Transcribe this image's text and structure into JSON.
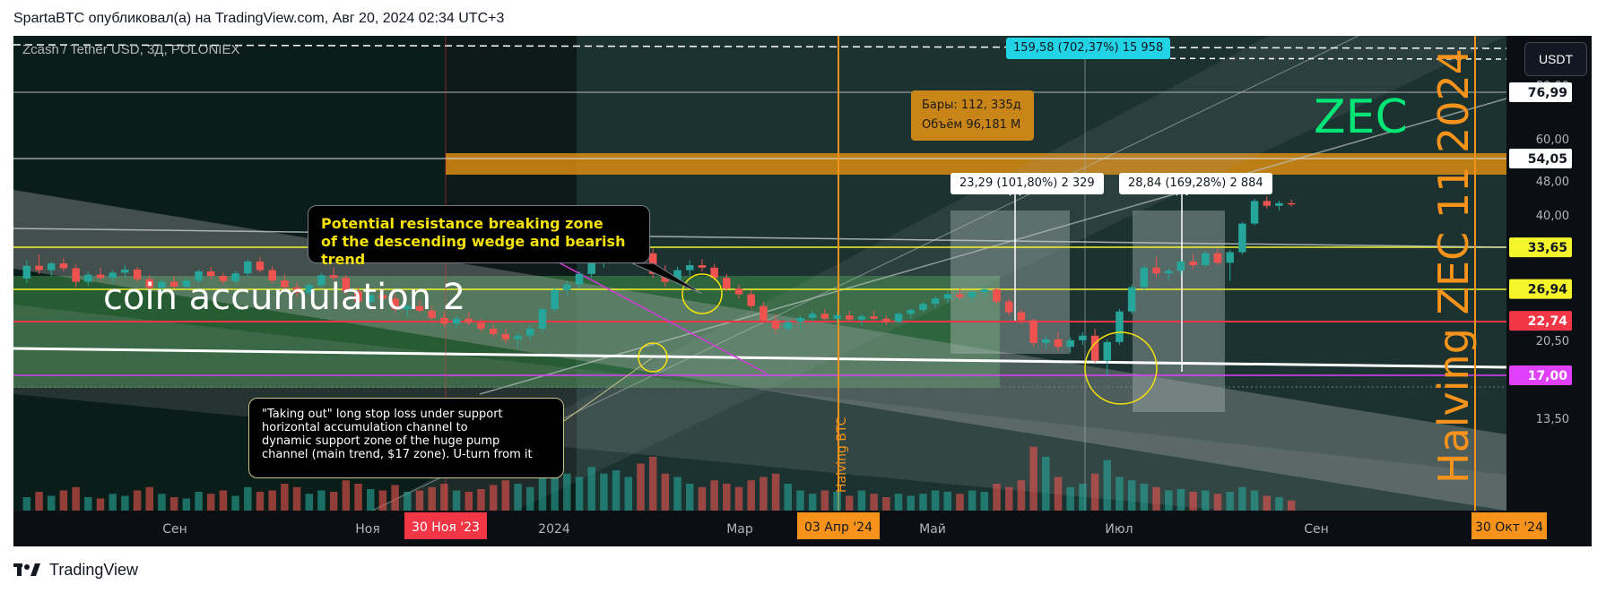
{
  "header": {
    "publish_line": "SpartaBTC опубликовал(а) на TradingView.com, Авг 20, 2024 02:34 UTC+3"
  },
  "chart": {
    "symbol_line": "Zcash / Tether USD, 3Д, POLONIEX",
    "currency_button": "USDT",
    "colors": {
      "background": "#0b0e13",
      "up": "#26a69a",
      "down": "#ef5350",
      "accent_orange": "#f7931a",
      "zec_green": "#00e676"
    }
  },
  "annotations": {
    "accumulation_label": "coin accumulation 2",
    "zec_label": "ZEC",
    "halving_zec": "Halving ZEC  11 2024",
    "halving_btc": "Halving BTC",
    "resistance_callout": "Potential resistance breaking zone\nof the descending wedge and bearish trend",
    "taking_out_callout": "\"Taking out\" long stop loss under support\nhorizontal accumulation channel to\ndynamic support zone of the huge pump\nchannel (main trend, $17 zone). U-turn from it",
    "bars_info_line1": "Бары: 112, 335д",
    "bars_info_line2": "Объём 96,181 M",
    "top_measure": "159,58 (702,37%) 15 958",
    "measure_left": "23,29 (101,80%) 2 329",
    "measure_right": "28,84 (169,28%) 2 884"
  },
  "chart_data": {
    "type": "candlestick",
    "title": "",
    "price_axis": {
      "scale": "log",
      "ticks": [
        "80,00",
        "60,00",
        "48,00",
        "40,00",
        "20,50",
        "13,50"
      ],
      "highlighted_levels": [
        {
          "label": "76,99",
          "value": 76.99,
          "bg": "#ffffff",
          "fg": "#131722"
        },
        {
          "label": "54,05",
          "value": 54.05,
          "bg": "#ffffff",
          "fg": "#131722"
        },
        {
          "label": "33,65",
          "value": 33.65,
          "bg": "#f5f52b",
          "fg": "#131722"
        },
        {
          "label": "26,94",
          "value": 26.94,
          "bg": "#f5f52b",
          "fg": "#131722"
        },
        {
          "label": "22,74",
          "value": 22.74,
          "bg": "#f23645",
          "fg": "#ffffff"
        },
        {
          "label": "17,00",
          "value": 17.0,
          "bg": "#e040fb",
          "fg": "#ffffff"
        }
      ]
    },
    "time_axis": {
      "labels": [
        "Сен",
        "Ноя",
        "2024",
        "Мар",
        "Май",
        "Июл",
        "Сен"
      ],
      "highlighted": [
        {
          "label": "30 Ноя '23",
          "bg": "#f23645"
        },
        {
          "label": "03 Апр '24",
          "bg": "#f7931a"
        },
        {
          "label": "30 Окт '24",
          "bg": "#f7931a"
        }
      ]
    },
    "candles": [
      [
        28.5,
        31.5,
        27.8,
        30.5
      ],
      [
        30.5,
        32.4,
        29.2,
        29.8
      ],
      [
        29.8,
        31.2,
        28.8,
        30.9
      ],
      [
        30.9,
        31.8,
        29.6,
        30.1
      ],
      [
        30.1,
        30.8,
        27.2,
        28.0
      ],
      [
        28.0,
        29.6,
        27.4,
        29.1
      ],
      [
        29.1,
        30.2,
        28.2,
        28.6
      ],
      [
        28.6,
        29.8,
        27.9,
        29.4
      ],
      [
        29.4,
        30.6,
        28.6,
        29.9
      ],
      [
        29.9,
        30.3,
        28.0,
        28.4
      ],
      [
        28.4,
        29.0,
        26.6,
        27.1
      ],
      [
        27.1,
        28.4,
        26.5,
        28.0
      ],
      [
        28.0,
        28.9,
        27.0,
        27.3
      ],
      [
        27.3,
        28.6,
        26.9,
        28.2
      ],
      [
        28.2,
        29.9,
        27.8,
        29.6
      ],
      [
        29.6,
        30.3,
        28.4,
        28.9
      ],
      [
        28.9,
        29.4,
        27.6,
        28.1
      ],
      [
        28.1,
        29.7,
        27.6,
        29.3
      ],
      [
        29.3,
        31.6,
        28.8,
        31.2
      ],
      [
        31.2,
        32.0,
        29.4,
        29.8
      ],
      [
        29.8,
        30.4,
        27.8,
        28.2
      ],
      [
        28.2,
        29.1,
        26.8,
        27.2
      ],
      [
        27.2,
        28.0,
        25.8,
        26.4
      ],
      [
        26.4,
        27.8,
        26.0,
        27.5
      ],
      [
        27.5,
        29.4,
        27.0,
        29.0
      ],
      [
        29.0,
        30.2,
        28.2,
        28.6
      ],
      [
        28.6,
        29.0,
        26.2,
        26.6
      ],
      [
        26.6,
        27.2,
        24.8,
        25.2
      ],
      [
        25.2,
        26.4,
        24.6,
        26.1
      ],
      [
        26.1,
        27.0,
        25.2,
        25.6
      ],
      [
        25.6,
        26.2,
        23.8,
        24.2
      ],
      [
        24.2,
        24.9,
        23.2,
        24.6
      ],
      [
        24.6,
        25.4,
        23.8,
        24.0
      ],
      [
        24.0,
        24.6,
        22.6,
        23.1
      ],
      [
        23.1,
        23.8,
        22.0,
        22.4
      ],
      [
        22.4,
        23.4,
        21.8,
        23.0
      ],
      [
        23.0,
        23.8,
        22.2,
        22.5
      ],
      [
        22.5,
        23.0,
        21.4,
        21.8
      ],
      [
        21.8,
        22.4,
        20.8,
        21.2
      ],
      [
        21.2,
        21.8,
        20.2,
        20.6
      ],
      [
        20.6,
        21.4,
        19.6,
        21.0
      ],
      [
        21.0,
        22.2,
        20.4,
        21.8
      ],
      [
        21.8,
        24.5,
        21.4,
        24.2
      ],
      [
        24.2,
        27.2,
        23.8,
        26.8
      ],
      [
        26.8,
        28.2,
        26.0,
        27.6
      ],
      [
        27.6,
        29.6,
        27.0,
        29.2
      ],
      [
        29.2,
        31.4,
        28.6,
        30.9
      ],
      [
        30.9,
        33.2,
        30.2,
        32.8
      ],
      [
        32.8,
        34.6,
        31.8,
        33.9
      ],
      [
        33.9,
        35.4,
        33.0,
        34.6
      ],
      [
        34.6,
        35.6,
        32.0,
        32.6
      ],
      [
        32.6,
        33.4,
        28.6,
        29.2
      ],
      [
        29.2,
        30.6,
        27.2,
        28.0
      ],
      [
        28.0,
        30.4,
        27.6,
        29.8
      ],
      [
        29.8,
        31.4,
        29.0,
        30.6
      ],
      [
        30.6,
        31.6,
        29.6,
        30.2
      ],
      [
        30.2,
        30.8,
        28.2,
        28.6
      ],
      [
        28.6,
        29.2,
        26.6,
        27.0
      ],
      [
        27.0,
        27.6,
        25.6,
        26.2
      ],
      [
        26.2,
        26.8,
        24.2,
        24.6
      ],
      [
        24.6,
        25.2,
        22.4,
        22.8
      ],
      [
        22.8,
        23.6,
        21.2,
        21.8
      ],
      [
        21.8,
        23.0,
        21.4,
        22.6
      ],
      [
        22.6,
        23.4,
        21.8,
        23.1
      ],
      [
        23.1,
        24.0,
        22.6,
        23.6
      ],
      [
        23.6,
        24.2,
        22.8,
        23.0
      ],
      [
        23.0,
        23.8,
        22.4,
        23.4
      ],
      [
        23.4,
        24.0,
        22.6,
        22.9
      ],
      [
        22.9,
        23.6,
        22.2,
        23.3
      ],
      [
        23.3,
        24.0,
        22.7,
        23.0
      ],
      [
        23.0,
        23.4,
        22.2,
        22.6
      ],
      [
        22.6,
        23.8,
        22.4,
        23.6
      ],
      [
        23.6,
        24.4,
        23.0,
        24.1
      ],
      [
        24.1,
        25.2,
        23.8,
        24.9
      ],
      [
        24.9,
        26.0,
        24.4,
        25.6
      ],
      [
        25.6,
        26.6,
        25.0,
        26.2
      ],
      [
        26.2,
        27.0,
        25.4,
        25.8
      ],
      [
        25.8,
        26.8,
        25.2,
        26.5
      ],
      [
        26.5,
        27.4,
        25.8,
        26.9
      ],
      [
        26.9,
        27.2,
        24.8,
        25.2
      ],
      [
        25.2,
        25.6,
        23.4,
        23.8
      ],
      [
        23.8,
        24.2,
        22.4,
        22.8
      ],
      [
        22.8,
        23.0,
        19.8,
        20.2
      ],
      [
        20.2,
        21.0,
        19.6,
        20.6
      ],
      [
        20.6,
        21.4,
        19.4,
        19.8
      ],
      [
        19.8,
        20.8,
        19.2,
        20.5
      ],
      [
        20.5,
        21.4,
        20.0,
        21.0
      ],
      [
        21.0,
        21.8,
        18.2,
        18.4
      ],
      [
        18.4,
        20.6,
        17.0,
        20.3
      ],
      [
        20.3,
        24.2,
        20.0,
        23.9
      ],
      [
        23.9,
        27.6,
        23.6,
        27.2
      ],
      [
        27.2,
        30.6,
        26.8,
        30.2
      ],
      [
        30.2,
        32.0,
        28.6,
        29.3
      ],
      [
        29.3,
        30.2,
        28.2,
        29.7
      ],
      [
        29.7,
        31.6,
        29.0,
        31.2
      ],
      [
        31.2,
        32.4,
        30.0,
        30.6
      ],
      [
        30.6,
        33.0,
        30.2,
        32.6
      ],
      [
        32.6,
        33.4,
        30.6,
        31.0
      ],
      [
        31.0,
        33.2,
        28.2,
        32.8
      ],
      [
        32.8,
        38.6,
        32.4,
        38.2
      ],
      [
        38.2,
        43.6,
        37.8,
        43.1
      ],
      [
        43.1,
        44.2,
        41.4,
        42.0
      ],
      [
        42.0,
        43.2,
        41.0,
        42.6
      ],
      [
        42.6,
        43.4,
        41.8,
        42.4
      ]
    ],
    "volumes": [
      0.2,
      0.28,
      0.22,
      0.3,
      0.35,
      0.2,
      0.18,
      0.25,
      0.22,
      0.3,
      0.35,
      0.25,
      0.2,
      0.18,
      0.28,
      0.25,
      0.3,
      0.22,
      0.35,
      0.28,
      0.3,
      0.4,
      0.35,
      0.25,
      0.3,
      0.28,
      0.45,
      0.4,
      0.32,
      0.3,
      0.38,
      0.28,
      0.3,
      0.35,
      0.4,
      0.3,
      0.28,
      0.32,
      0.38,
      0.45,
      0.4,
      0.35,
      0.5,
      0.6,
      0.55,
      0.5,
      0.65,
      0.55,
      0.6,
      0.5,
      0.7,
      0.8,
      0.55,
      0.5,
      0.4,
      0.35,
      0.45,
      0.4,
      0.35,
      0.45,
      0.5,
      0.55,
      0.4,
      0.3,
      0.25,
      0.3,
      0.28,
      0.22,
      0.3,
      0.25,
      0.2,
      0.25,
      0.22,
      0.25,
      0.3,
      0.28,
      0.25,
      0.3,
      0.28,
      0.4,
      0.35,
      0.45,
      0.95,
      0.8,
      0.5,
      0.35,
      0.4,
      0.55,
      0.75,
      0.5,
      0.45,
      0.4,
      0.35,
      0.3,
      0.32,
      0.28,
      0.3,
      0.25,
      0.28,
      0.35,
      0.3,
      0.22,
      0.2,
      0.15
    ]
  }
}
